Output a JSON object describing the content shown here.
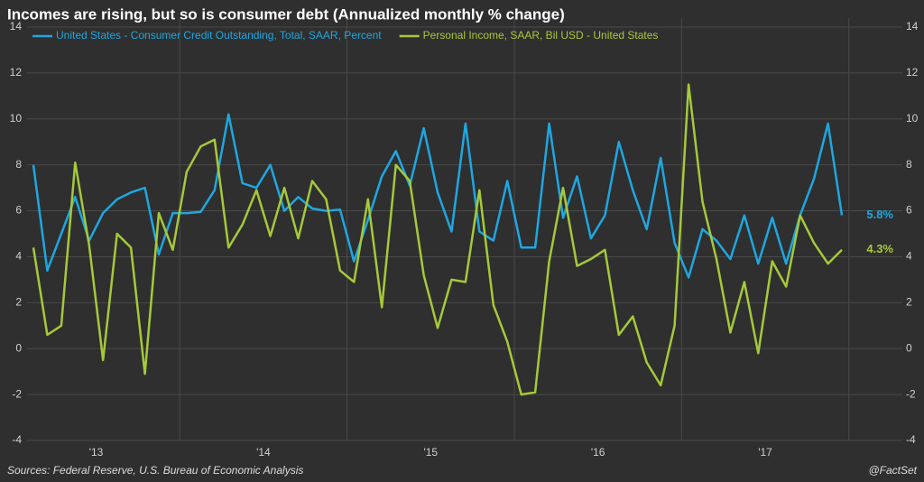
{
  "chart_data": {
    "type": "line",
    "title": "Incomes are rising, but so is consumer debt (Annualized monthly % change)",
    "source": "Sources: Federal Reserve, U.S. Bureau of Economic Analysis",
    "credit": "@FactSet",
    "categories": [
      null,
      null,
      null,
      null,
      null,
      "'13",
      null,
      null,
      null,
      null,
      null,
      null,
      null,
      null,
      null,
      null,
      null,
      "'14",
      null,
      null,
      null,
      null,
      null,
      null,
      null,
      null,
      null,
      null,
      null,
      "'15",
      null,
      null,
      null,
      null,
      null,
      null,
      null,
      null,
      null,
      null,
      null,
      "'16",
      null,
      null,
      null,
      null,
      null,
      null,
      null,
      null,
      null,
      null,
      null,
      "'17",
      null,
      null,
      null,
      null,
      null
    ],
    "series": [
      {
        "name": "United States - Consumer Credit Outstanding, Total, SAAR, Percent",
        "color": "#1ea7e1",
        "values": [
          8.0,
          3.4,
          5.0,
          6.6,
          4.7,
          5.9,
          6.5,
          6.8,
          7.0,
          4.1,
          5.9,
          5.9,
          5.95,
          6.9,
          10.2,
          7.2,
          7.0,
          8.0,
          6.0,
          6.6,
          6.1,
          6.0,
          6.05,
          3.8,
          5.6,
          7.5,
          8.6,
          7.1,
          9.6,
          6.8,
          5.1,
          9.8,
          5.1,
          4.7,
          7.3,
          4.4,
          4.4,
          9.8,
          5.7,
          7.5,
          4.8,
          5.8,
          9.0,
          6.9,
          5.2,
          8.3,
          4.6,
          3.1,
          5.2,
          4.7,
          3.9,
          5.8,
          3.7,
          5.7,
          3.7,
          5.8,
          7.4,
          9.8,
          5.8
        ],
        "value_labels": [
          null,
          null,
          null,
          null,
          null,
          null,
          null,
          null,
          null,
          null,
          null,
          null,
          null,
          null,
          null,
          null,
          null,
          null,
          null,
          null,
          null,
          null,
          null,
          null,
          null,
          null,
          null,
          null,
          null,
          null,
          null,
          null,
          null,
          null,
          null,
          null,
          null,
          null,
          null,
          null,
          null,
          null,
          null,
          null,
          null,
          null,
          null,
          null,
          null,
          null,
          null,
          null,
          null,
          null,
          null,
          null,
          null,
          null,
          "5.8%"
        ]
      },
      {
        "name": "Personal Income, SAAR, Bil USD - United States",
        "color": "#a5c93a",
        "values": [
          4.4,
          0.6,
          1.0,
          8.1,
          4.5,
          -0.5,
          5.0,
          4.4,
          -1.1,
          5.9,
          4.3,
          7.7,
          8.8,
          9.1,
          4.4,
          5.4,
          6.9,
          4.9,
          7.0,
          4.8,
          7.3,
          6.5,
          3.4,
          2.9,
          6.5,
          1.8,
          8.0,
          7.3,
          3.2,
          0.9,
          3.0,
          2.9,
          6.9,
          1.9,
          0.3,
          -2.0,
          -1.9,
          3.8,
          7.0,
          3.6,
          3.9,
          4.3,
          0.6,
          1.4,
          -0.6,
          -1.6,
          1.0,
          11.5,
          6.4,
          3.9,
          0.7,
          2.9,
          -0.2,
          3.8,
          2.7,
          5.8,
          4.6,
          3.7,
          4.3
        ],
        "value_labels": [
          null,
          null,
          null,
          null,
          null,
          null,
          null,
          null,
          null,
          null,
          null,
          null,
          null,
          null,
          null,
          null,
          null,
          null,
          null,
          null,
          null,
          null,
          null,
          null,
          null,
          null,
          null,
          null,
          null,
          null,
          null,
          null,
          null,
          null,
          null,
          null,
          null,
          null,
          null,
          null,
          null,
          null,
          null,
          null,
          null,
          null,
          null,
          null,
          null,
          null,
          null,
          null,
          null,
          null,
          null,
          null,
          null,
          null,
          "4.3%"
        ]
      }
    ],
    "ylim": [
      -4,
      14
    ],
    "yticks": [
      -4,
      -2,
      0,
      2,
      4,
      6,
      8,
      10,
      12,
      14
    ],
    "y2lim": [
      -4,
      14
    ],
    "y2ticks": [
      -4,
      -2,
      0,
      2,
      4,
      6,
      8,
      10,
      12,
      14
    ],
    "grid": true
  }
}
